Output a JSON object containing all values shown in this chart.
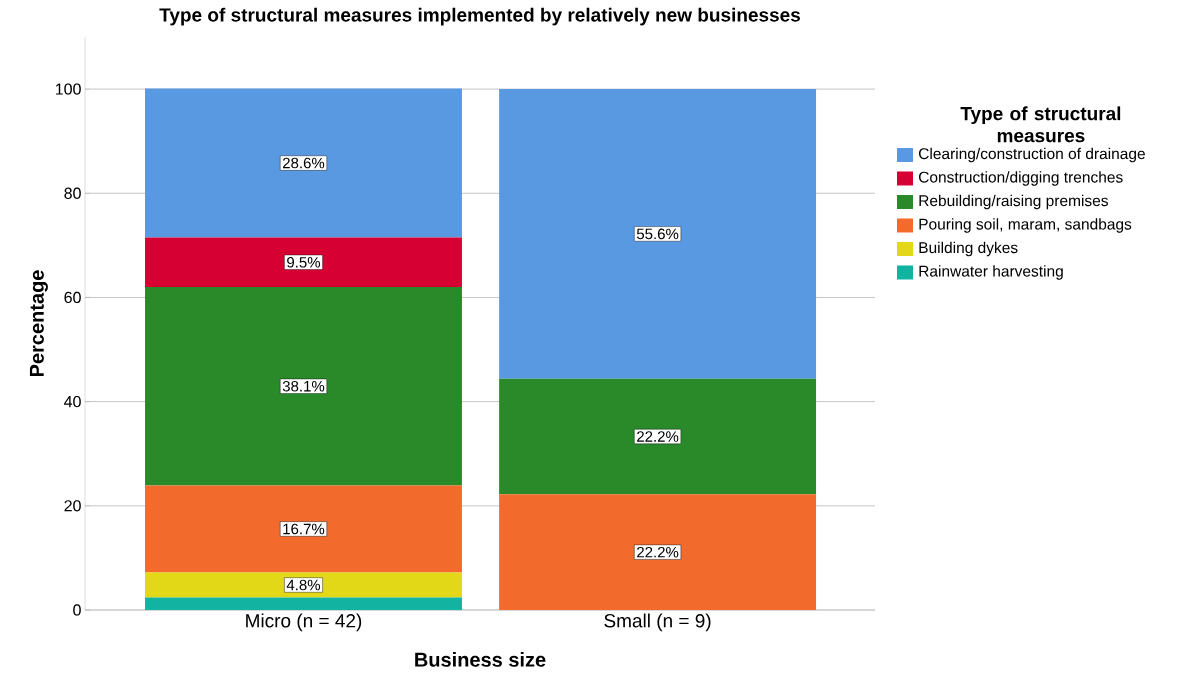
{
  "chart_data": {
    "type": "bar",
    "stacked": true,
    "title": "Type of structural measures implemented by relatively new businesses",
    "xlabel": "Business size",
    "ylabel": "Percentage",
    "legend_title": "Type of structural measures",
    "categories": [
      "Micro (n = 42)",
      "Small (n = 9)"
    ],
    "series": [
      {
        "name": "Rainwater harvesting",
        "color": "#12b3a0",
        "values": [
          2.4,
          null
        ],
        "value_labels": [
          null,
          null
        ]
      },
      {
        "name": "Building dykes",
        "color": "#e3d817",
        "values": [
          4.8,
          null
        ],
        "value_labels": [
          "4.8%",
          null
        ]
      },
      {
        "name": "Pouring soil, maram, sandbags",
        "color": "#f26a2c",
        "values": [
          16.7,
          22.2
        ],
        "value_labels": [
          "16.7%",
          "22.2%"
        ]
      },
      {
        "name": "Rebuilding/raising premises",
        "color": "#2a8a2a",
        "values": [
          38.1,
          22.2
        ],
        "value_labels": [
          "38.1%",
          "22.2%"
        ]
      },
      {
        "name": "Construction/digging trenches",
        "color": "#d60032",
        "values": [
          9.5,
          null
        ],
        "value_labels": [
          "9.5%",
          null
        ]
      },
      {
        "name": "Clearing/construction of drainage",
        "color": "#5899e2",
        "values": [
          28.6,
          55.6
        ],
        "value_labels": [
          "28.6%",
          "55.6%"
        ]
      }
    ],
    "ylim": [
      0,
      110
    ],
    "yticks": [
      0,
      20,
      40,
      60,
      80,
      100
    ],
    "grid": "y",
    "legend": "right"
  }
}
